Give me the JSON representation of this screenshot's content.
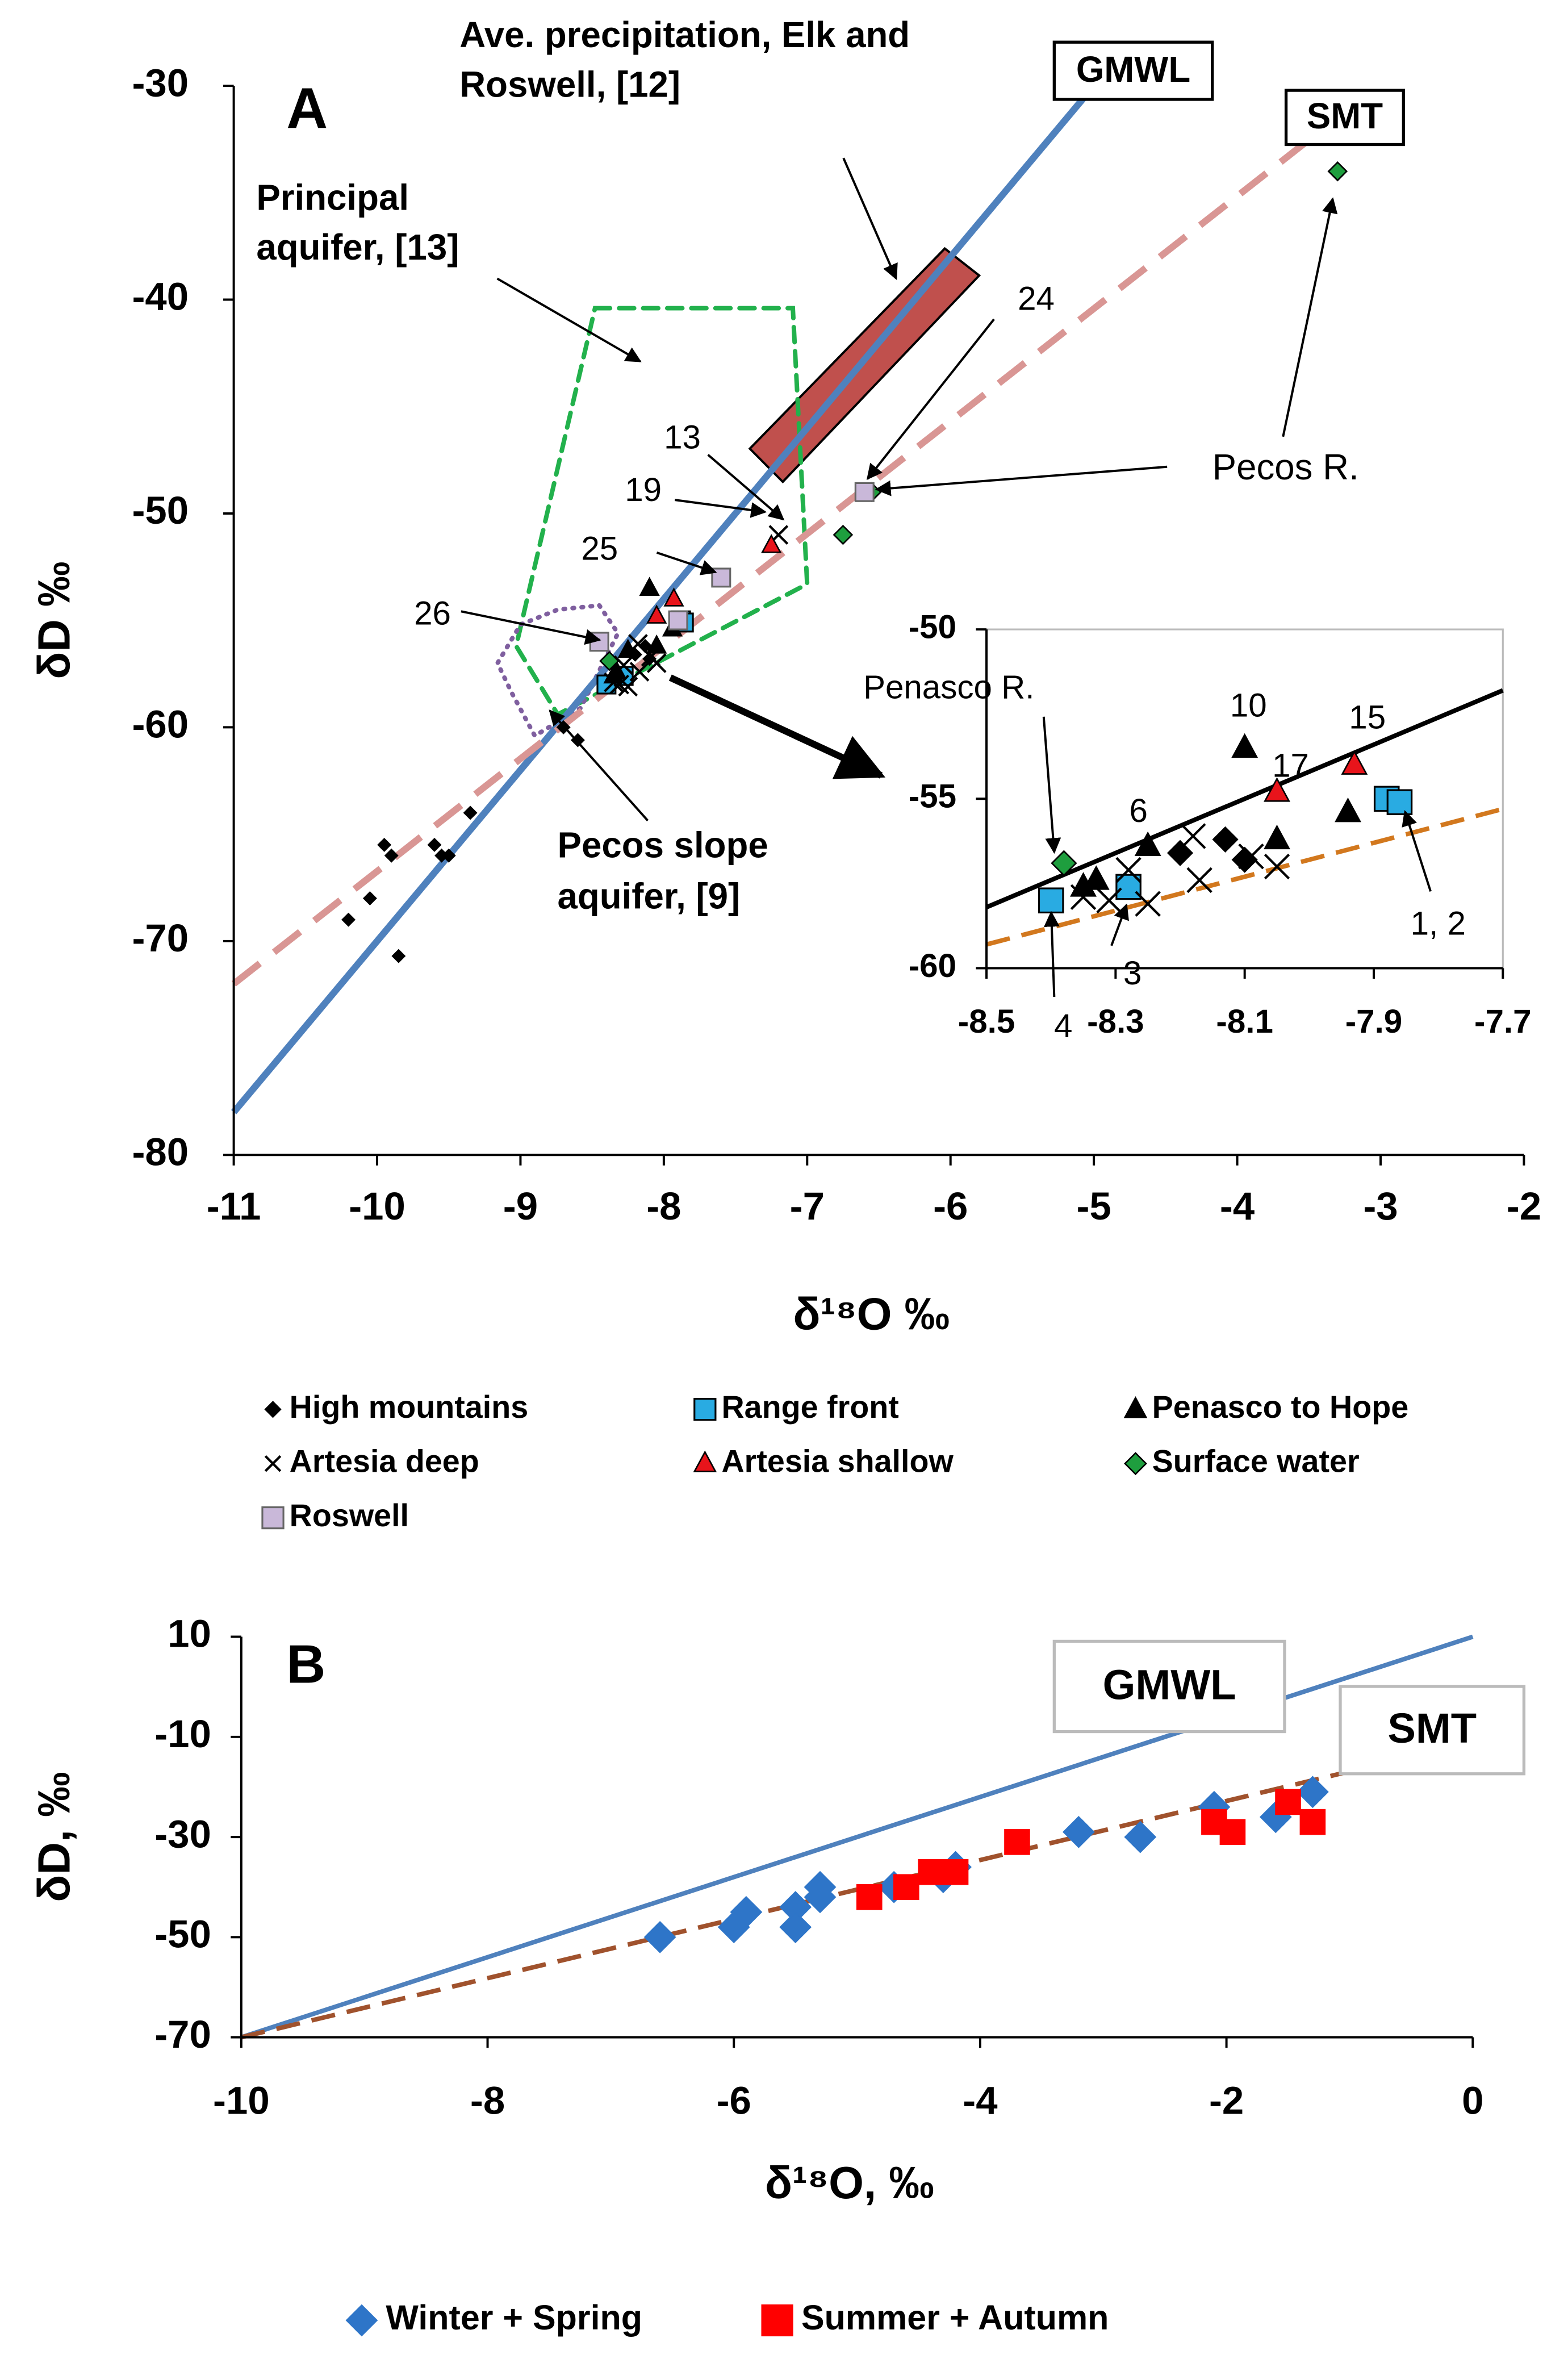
{
  "chart_data": [
    {
      "type": "scatter",
      "xlabel": "δ¹⁸O ‰",
      "ylabel": "δD ‰",
      "xlim": [
        -11,
        -2
      ],
      "xticks": [
        -11,
        -10,
        -9,
        -8,
        -7,
        -6,
        -5,
        -4,
        -3,
        -2
      ],
      "ylim": [
        -80,
        -30
      ],
      "yticks": [
        -80,
        -70,
        -60,
        -50,
        -40,
        -30
      ],
      "series": [
        {
          "name": "High mountains",
          "marker": "diamond",
          "color": "#000000",
          "edgecolor": "#000000",
          "x": [
            -10.2,
            -10.05,
            -9.95,
            -9.9,
            -9.85,
            -9.6,
            -9.55,
            -9.5,
            -9.35,
            -8.7,
            -8.6,
            -8.2,
            -8.13,
            -8.1
          ],
          "values": [
            -69,
            -68,
            -65.5,
            -66,
            -70.7,
            -65.5,
            -66,
            -66,
            -64,
            -60,
            -60.6,
            -56.6,
            -56.2,
            -56.8
          ]
        },
        {
          "name": "Range front",
          "marker": "square",
          "color": "#29abe2",
          "edgecolor": "#000000",
          "x": [
            -8.4,
            -8.28,
            -7.88,
            -7.86
          ],
          "values": [
            -58,
            -57.6,
            -55,
            -55.1
          ]
        },
        {
          "name": "Penasco to Hope",
          "marker": "triangle",
          "color": "#000000",
          "edgecolor": "#000000",
          "x": [
            -8.1,
            -8.33,
            -8.35,
            -8.25,
            -8.05,
            -7.94
          ],
          "values": [
            -53.5,
            -57.4,
            -57.6,
            -56.4,
            -56.2,
            -55.4
          ]
        },
        {
          "name": "Artesia deep",
          "marker": "x",
          "color": "#000000",
          "edgecolor": "#000000",
          "x": [
            -8.35,
            -8.31,
            -8.28,
            -8.25,
            -8.18,
            -8.17,
            -8.09,
            -8.05,
            -7.2
          ],
          "values": [
            -57.9,
            -58,
            -57.1,
            -58.1,
            -56.1,
            -57.4,
            -56.7,
            -57,
            -51
          ]
        },
        {
          "name": "Artesia shallow",
          "marker": "triangle",
          "color": "#e8141b",
          "edgecolor": "#000000",
          "x": [
            -7.25,
            -8.05,
            -7.93
          ],
          "values": [
            -51.5,
            -54.8,
            -54
          ]
        },
        {
          "name": "Surface water",
          "marker": "diamond",
          "color": "#1e9e3e",
          "edgecolor": "#000000",
          "x": [
            -3.3,
            -6.55,
            -6.75,
            -8.38
          ],
          "values": [
            -34,
            -49,
            -51,
            -56.9
          ]
        },
        {
          "name": "Roswell",
          "marker": "square",
          "color": "#c9b8d9",
          "edgecolor": "#666666",
          "x": [
            -6.6,
            -7.6,
            -8.45,
            -7.9
          ],
          "values": [
            -49,
            -53,
            -56,
            -55
          ]
        }
      ],
      "lines": [
        {
          "name": "GMWL",
          "color": "#4f81bd",
          "dash": false,
          "x": [
            -11,
            -4.9
          ],
          "y": [
            -78,
            -29.2
          ]
        },
        {
          "name": "SMT",
          "color": "#d99694",
          "dash": true,
          "x": [
            -11,
            -3.4
          ],
          "y": [
            -72,
            -32
          ]
        }
      ],
      "regions": [
        {
          "color": "#c0504d",
          "fill": true,
          "dash": false,
          "x": [
            -7.4,
            -7.17,
            -5.8,
            -6.04
          ],
          "y": [
            -46.97,
            -48.52,
            -38.87,
            -37.61
          ]
        },
        {
          "color": "#22b14c",
          "fill": false,
          "dash": true,
          "x": [
            -8.48,
            -7.1,
            -7.0,
            -8.74,
            -9.03
          ],
          "y": [
            -40.4,
            -40.4,
            -53.3,
            -59.4,
            -56.2
          ]
        },
        {
          "color": "#7f5f9f",
          "fill": false,
          "dash": true,
          "x": [
            -8.45,
            -8.32,
            -8.58,
            -8.9,
            -9.06,
            -9.16,
            -9.0,
            -8.74
          ],
          "y": [
            -54.3,
            -55.6,
            -59.1,
            -60.4,
            -58.4,
            -57.0,
            -55.2,
            -54.5
          ]
        }
      ],
      "annotations": [
        "A",
        "Ave. precipitation, Elk and",
        "Roswell, [12]",
        "Principal",
        "aquifer, [13]",
        "Pecos slope",
        "aquifer, [9]",
        "Pecos R.",
        "24",
        "13",
        "19",
        "25",
        "26"
      ]
    },
    {
      "type": "scatter",
      "xlim": [
        -8.5,
        -7.7
      ],
      "xticks": [
        -8.5,
        -8.3,
        -8.1,
        -7.9,
        -7.7
      ],
      "ylim": [
        -60,
        -50
      ],
      "yticks": [
        -60,
        -55,
        -50
      ],
      "series": [
        {
          "marker": "diamond",
          "color": "#000000",
          "edgecolor": "#000000",
          "x": [
            -8.2,
            -8.13,
            -8.1
          ],
          "values": [
            -56.6,
            -56.2,
            -56.8
          ]
        },
        {
          "marker": "square",
          "color": "#29abe2",
          "edgecolor": "#000000",
          "x": [
            -8.4,
            -8.28,
            -7.88,
            -7.86
          ],
          "values": [
            -58,
            -57.6,
            -55,
            -55.1
          ]
        },
        {
          "marker": "triangle",
          "color": "#000000",
          "edgecolor": "#000000",
          "x": [
            -8.1,
            -8.33,
            -8.35,
            -8.25,
            -8.05,
            -7.94
          ],
          "values": [
            -53.5,
            -57.4,
            -57.6,
            -56.4,
            -56.2,
            -55.4
          ]
        },
        {
          "marker": "x",
          "color": "#000000",
          "edgecolor": "#000000",
          "x": [
            -8.35,
            -8.31,
            -8.28,
            -8.25,
            -8.18,
            -8.17,
            -8.09,
            -8.05
          ],
          "values": [
            -57.9,
            -58,
            -57.1,
            -58.1,
            -56.1,
            -57.4,
            -56.7,
            -57
          ]
        },
        {
          "marker": "triangle",
          "color": "#e8141b",
          "edgecolor": "#000000",
          "x": [
            -8.05,
            -7.93
          ],
          "values": [
            -54.8,
            -54
          ]
        },
        {
          "marker": "diamond",
          "color": "#1e9e3e",
          "edgecolor": "#000000",
          "x": [
            -8.38
          ],
          "values": [
            -56.9
          ]
        }
      ],
      "lines": [
        {
          "color": "#000000",
          "dash": false,
          "x": [
            -8.5,
            -7.7
          ],
          "y": [
            -58.2,
            -51.8
          ]
        },
        {
          "color": "#d2781e",
          "dash": true,
          "x": [
            -8.5,
            -7.7
          ],
          "y": [
            -59.3,
            -55.3
          ]
        }
      ],
      "annotations": [
        "Penasco R.",
        "10",
        "15",
        "17",
        "6",
        "4",
        "3",
        "1, 2"
      ]
    },
    {
      "type": "scatter",
      "xlabel": "δ¹⁸O, ‰",
      "ylabel": "δD, ‰",
      "xlim": [
        -10,
        0
      ],
      "xticks": [
        -10,
        -8,
        -6,
        -4,
        -2,
        0
      ],
      "ylim": [
        -70,
        10
      ],
      "yticks": [
        -70,
        -50,
        -30,
        -10,
        10
      ],
      "series": [
        {
          "name": "Winter + Spring",
          "marker": "diamond",
          "color": "#2e75c8",
          "edgecolor": "#2e75c8",
          "x": [
            -6.6,
            -6.0,
            -5.9,
            -5.5,
            -5.5,
            -5.3,
            -5.3,
            -4.7,
            -4.3,
            -4.2,
            -3.2,
            -2.7,
            -2.1,
            -1.6,
            -1.3
          ],
          "values": [
            -50,
            -48,
            -45,
            -44,
            -48,
            -42,
            -40,
            -40,
            -38,
            -36,
            -29,
            -30,
            -24,
            -26,
            -21
          ]
        },
        {
          "name": "Summer + Autumn",
          "marker": "square",
          "color": "#ff0000",
          "edgecolor": "#ff0000",
          "x": [
            -4.9,
            -4.6,
            -4.4,
            -4.2,
            -3.7,
            -2.1,
            -1.95,
            -1.5,
            -1.3
          ],
          "values": [
            -42,
            -40,
            -37,
            -37,
            -31,
            -27,
            -29,
            -23,
            -27
          ]
        }
      ],
      "lines": [
        {
          "name": "GMWL",
          "color": "#4f81bd",
          "dash": false,
          "x": [
            -10,
            0
          ],
          "y": [
            -70,
            10
          ]
        },
        {
          "name": "SMT",
          "color": "#a0522d",
          "dash": true,
          "x": [
            -10,
            0
          ],
          "y": [
            -70,
            -11
          ]
        }
      ],
      "annotations": [
        "B"
      ]
    }
  ]
}
